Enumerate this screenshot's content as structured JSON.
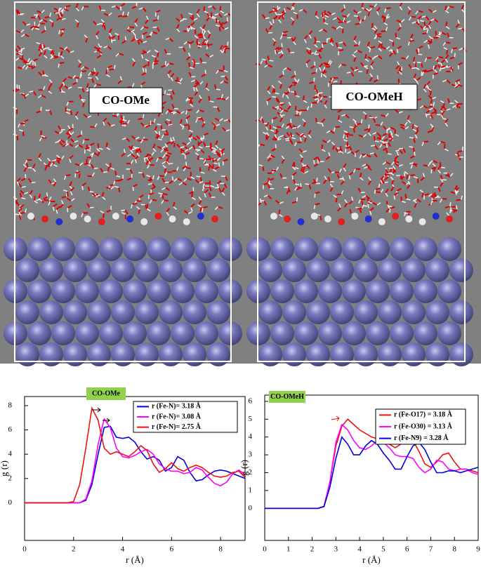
{
  "snapshots": [
    {
      "label": "CO-OMe"
    },
    {
      "label": "CO-OMeH"
    }
  ],
  "chart_data": [
    {
      "type": "line",
      "title": "CO-OMe",
      "x_label": "r (Å)",
      "y_label": "g (r)",
      "xlim": [
        0,
        9
      ],
      "xticks": [
        0,
        2,
        4,
        6,
        8
      ],
      "ylim": [
        -3.1,
        8.75
      ],
      "yticks": [
        0,
        2,
        4,
        6,
        8
      ],
      "x": [
        0,
        0.25,
        0.5,
        0.75,
        1,
        1.25,
        1.5,
        1.75,
        2,
        2.25,
        2.5,
        2.75,
        3,
        3.25,
        3.5,
        3.75,
        4,
        4.25,
        4.5,
        4.75,
        5,
        5.25,
        5.5,
        5.75,
        6,
        6.25,
        6.5,
        6.75,
        7,
        7.25,
        7.5,
        7.75,
        8,
        8.25,
        8.5,
        8.75,
        9
      ],
      "series": [
        {
          "name": "r (Fe-N)= 3.18 Å",
          "color": "#0000e0",
          "values": [
            0,
            0,
            0,
            0,
            0,
            0,
            0,
            0,
            0,
            0,
            0.2,
            1.5,
            4.0,
            6.2,
            6.3,
            5.4,
            5.3,
            5.4,
            5.0,
            4.2,
            3.6,
            3.8,
            3.5,
            2.6,
            2.9,
            3.8,
            3.5,
            2.5,
            1.8,
            1.9,
            2.3,
            2.6,
            2.7,
            2.6,
            2.4,
            2.2,
            2.0
          ]
        },
        {
          "name": "r (Fe-N)= 3.08 Å",
          "color": "#ff00ff",
          "values": [
            0,
            0,
            0,
            0,
            0,
            0,
            0,
            0,
            0,
            0,
            0.3,
            1.8,
            4.8,
            6.9,
            6.2,
            4.5,
            3.8,
            3.7,
            3.9,
            4.2,
            4.4,
            4.0,
            3.2,
            2.8,
            2.6,
            2.6,
            2.4,
            2.5,
            2.9,
            2.7,
            2.1,
            1.6,
            1.4,
            1.7,
            2.4,
            2.7,
            2.3
          ]
        },
        {
          "name": "r (Fe-N)= 2.75 Å",
          "color": "#ee1111",
          "values": [
            0,
            0,
            0,
            0,
            0,
            0,
            0,
            0,
            0.1,
            1.5,
            4.5,
            7.8,
            6.8,
            4.5,
            4.0,
            4.2,
            4.0,
            3.8,
            4.2,
            4.7,
            4.3,
            3.2,
            2.5,
            2.8,
            3.3,
            2.8,
            2.6,
            2.9,
            3.1,
            2.9,
            2.5,
            2.2,
            2.1,
            2.2,
            2.5,
            2.6,
            2.1
          ]
        }
      ]
    },
    {
      "type": "line",
      "title": "CO-OMeH",
      "x_label": "r (Å)",
      "y_label": "g (r)",
      "xlim": [
        0,
        9
      ],
      "xticks": [
        0,
        1,
        2,
        3,
        4,
        5,
        6,
        7,
        8,
        9
      ],
      "ylim": [
        -1.8,
        6.35
      ],
      "yticks": [
        0,
        1,
        2,
        3,
        4,
        5,
        6
      ],
      "x": [
        0,
        0.25,
        0.5,
        0.75,
        1,
        1.25,
        1.5,
        1.75,
        2,
        2.25,
        2.5,
        2.75,
        3,
        3.25,
        3.5,
        3.75,
        4,
        4.25,
        4.5,
        4.75,
        5,
        5.25,
        5.5,
        5.75,
        6,
        6.25,
        6.5,
        6.75,
        7,
        7.25,
        7.5,
        7.75,
        8,
        8.25,
        8.5,
        8.75,
        9
      ],
      "series": [
        {
          "name": "r (Fe-O17) = 3.18 Å",
          "color": "#ee1111",
          "values": [
            0,
            0,
            0,
            0,
            0,
            0,
            0,
            0,
            0,
            0,
            0.1,
            1.5,
            3.5,
            4.6,
            5.0,
            4.7,
            4.4,
            4.2,
            4.0,
            3.9,
            3.9,
            3.6,
            3.4,
            3.6,
            4.0,
            3.8,
            3.2,
            2.5,
            2.3,
            2.6,
            3.0,
            3.1,
            2.6,
            2.2,
            2.2,
            2.1,
            2.0
          ]
        },
        {
          "name": "r (Fe-O30) = 3.13 Å",
          "color": "#ff00ff",
          "values": [
            0,
            0,
            0,
            0,
            0,
            0,
            0,
            0,
            0,
            0,
            0.1,
            1.5,
            3.7,
            4.7,
            4.4,
            3.8,
            3.4,
            3.3,
            3.5,
            3.8,
            3.7,
            3.4,
            3.0,
            2.9,
            2.9,
            2.8,
            2.3,
            2.0,
            2.2,
            2.7,
            2.6,
            2.2,
            2.1,
            2.2,
            2.2,
            2.0,
            1.9
          ]
        },
        {
          "name": "r (Fe-N9)  = 3.28 Å",
          "color": "#0000e0",
          "values": [
            0,
            0,
            0,
            0,
            0,
            0,
            0,
            0,
            0,
            0,
            0.1,
            1.2,
            2.8,
            4.0,
            3.6,
            3.0,
            3.0,
            3.5,
            3.8,
            3.6,
            3.1,
            2.7,
            2.2,
            2.2,
            2.9,
            3.5,
            3.7,
            3.3,
            2.6,
            2.0,
            2.0,
            2.1,
            2.1,
            2.0,
            2.1,
            2.2,
            2.3
          ]
        }
      ]
    }
  ]
}
